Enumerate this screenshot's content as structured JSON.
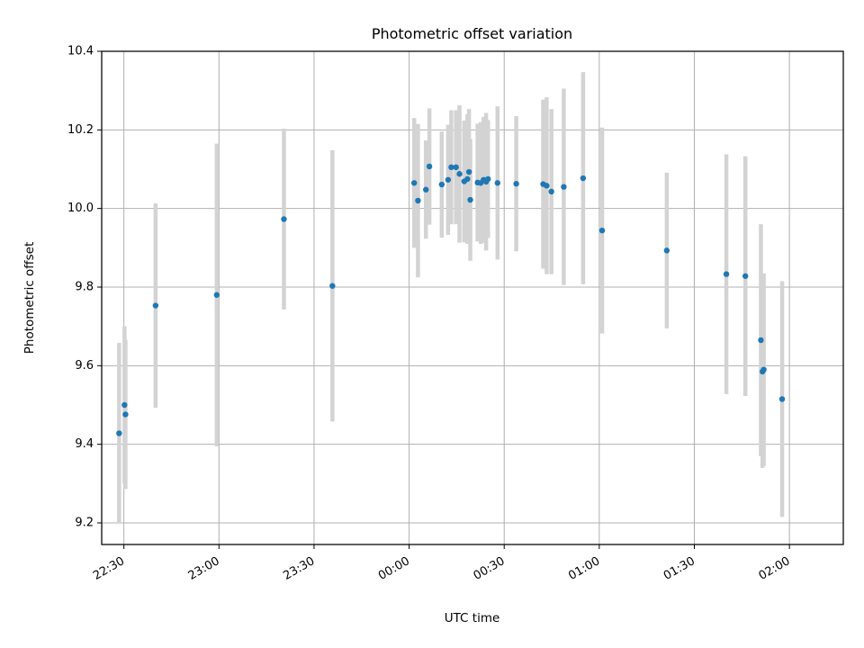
{
  "chart_data": {
    "type": "scatter",
    "title": "Photometric offset variation",
    "xlabel": "UTC time",
    "ylabel": "Photometric offset",
    "grid": true,
    "xlim_minutes": [
      -97,
      137
    ],
    "ylim": [
      9.145,
      10.4
    ],
    "x_unit": "minutes relative to 00:00 UTC",
    "x_ticks": [
      {
        "label": "22:30",
        "value": -90
      },
      {
        "label": "23:00",
        "value": -60
      },
      {
        "label": "23:30",
        "value": -30
      },
      {
        "label": "00:00",
        "value": 0
      },
      {
        "label": "00:30",
        "value": 30
      },
      {
        "label": "01:00",
        "value": 60
      },
      {
        "label": "01:30",
        "value": 90
      },
      {
        "label": "02:00",
        "value": 120
      }
    ],
    "y_ticks": [
      "9.2",
      "9.4",
      "9.6",
      "9.8",
      "10.0",
      "10.2",
      "10.4"
    ],
    "colors": {
      "points": "#1f77b4",
      "errorbars": "#d3d3d3",
      "grid": "#b0b0b0"
    },
    "points": [
      {
        "x": -91.5,
        "y": 9.428,
        "err": 0.23
      },
      {
        "x": -89.8,
        "y": 9.5,
        "err": 0.2
      },
      {
        "x": -89.5,
        "y": 9.476,
        "err": 0.19
      },
      {
        "x": -80.0,
        "y": 9.753,
        "err": 0.26
      },
      {
        "x": -60.7,
        "y": 9.78,
        "err": 0.385
      },
      {
        "x": -39.5,
        "y": 9.973,
        "err": 0.23
      },
      {
        "x": -24.2,
        "y": 9.803,
        "err": 0.345
      },
      {
        "x": 1.6,
        "y": 10.065,
        "err": 0.165
      },
      {
        "x": 2.8,
        "y": 10.02,
        "err": 0.195
      },
      {
        "x": 5.3,
        "y": 10.048,
        "err": 0.125
      },
      {
        "x": 6.4,
        "y": 10.107,
        "err": 0.148
      },
      {
        "x": 10.3,
        "y": 10.061,
        "err": 0.135
      },
      {
        "x": 12.3,
        "y": 10.073,
        "err": 0.14
      },
      {
        "x": 13.3,
        "y": 10.105,
        "err": 0.145
      },
      {
        "x": 14.8,
        "y": 10.105,
        "err": 0.145
      },
      {
        "x": 15.9,
        "y": 10.088,
        "err": 0.175
      },
      {
        "x": 17.4,
        "y": 10.069,
        "err": 0.155
      },
      {
        "x": 18.4,
        "y": 10.075,
        "err": 0.165
      },
      {
        "x": 18.9,
        "y": 10.093,
        "err": 0.16
      },
      {
        "x": 19.3,
        "y": 10.022,
        "err": 0.155
      },
      {
        "x": 21.6,
        "y": 10.066,
        "err": 0.15
      },
      {
        "x": 22.6,
        "y": 10.065,
        "err": 0.155
      },
      {
        "x": 23.5,
        "y": 10.073,
        "err": 0.16
      },
      {
        "x": 24.3,
        "y": 10.068,
        "err": 0.175
      },
      {
        "x": 24.9,
        "y": 10.075,
        "err": 0.15
      },
      {
        "x": 27.9,
        "y": 10.065,
        "err": 0.195
      },
      {
        "x": 33.8,
        "y": 10.063,
        "err": 0.172
      },
      {
        "x": 42.3,
        "y": 10.062,
        "err": 0.215
      },
      {
        "x": 43.4,
        "y": 10.058,
        "err": 0.225
      },
      {
        "x": 44.9,
        "y": 10.043,
        "err": 0.21
      },
      {
        "x": 48.8,
        "y": 10.055,
        "err": 0.25
      },
      {
        "x": 54.9,
        "y": 10.077,
        "err": 0.27
      },
      {
        "x": 60.9,
        "y": 9.944,
        "err": 0.262
      },
      {
        "x": 81.3,
        "y": 9.893,
        "err": 0.198
      },
      {
        "x": 100.1,
        "y": 9.833,
        "err": 0.305
      },
      {
        "x": 106.1,
        "y": 9.828,
        "err": 0.305
      },
      {
        "x": 111.0,
        "y": 9.665,
        "err": 0.295
      },
      {
        "x": 111.5,
        "y": 9.585,
        "err": 0.245
      },
      {
        "x": 111.9,
        "y": 9.59,
        "err": 0.245
      },
      {
        "x": 117.7,
        "y": 9.515,
        "err": 0.3
      }
    ]
  }
}
